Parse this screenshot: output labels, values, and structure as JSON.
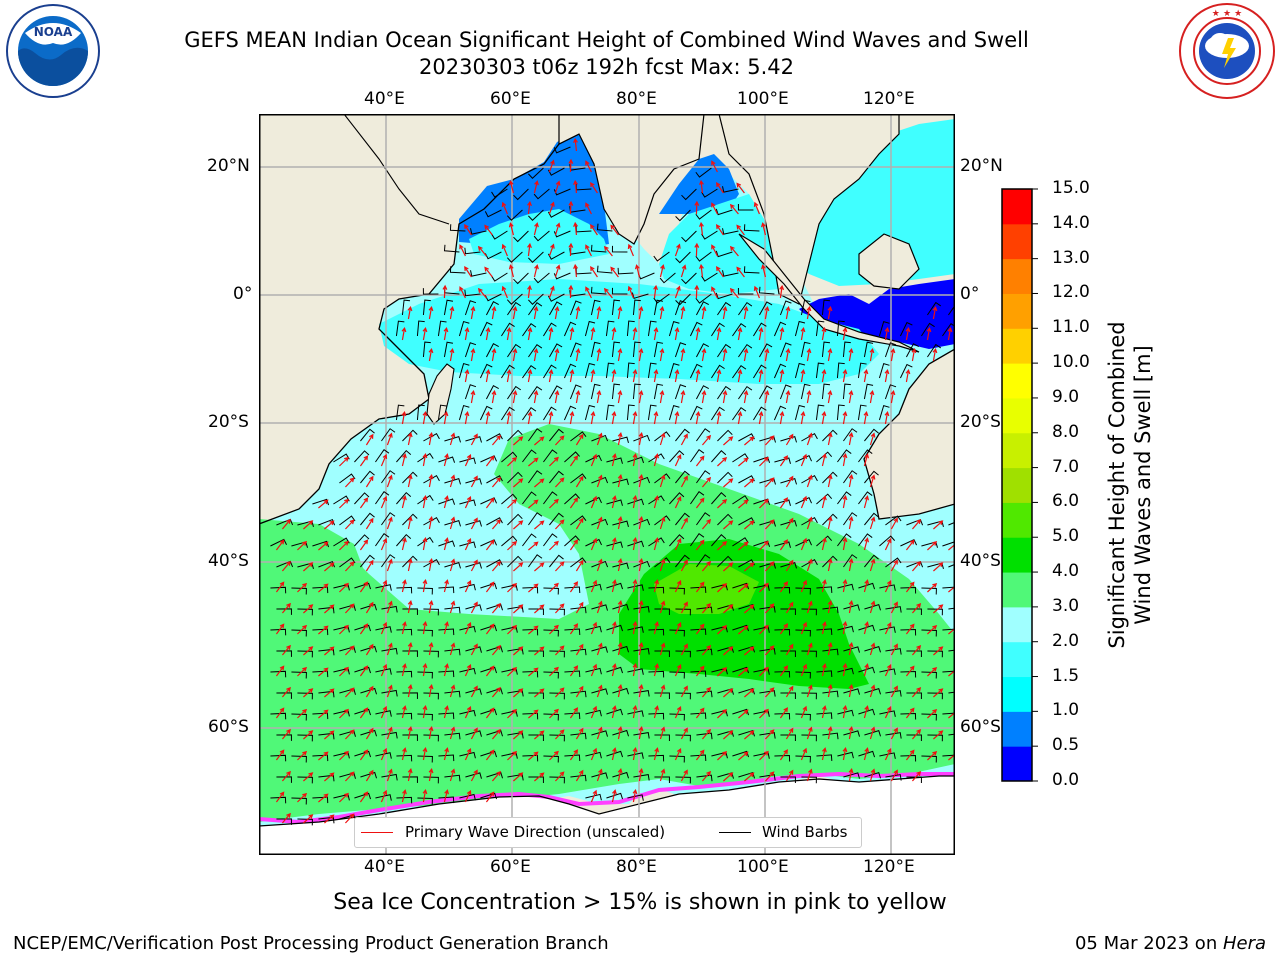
{
  "header": {
    "title_line1": "GEFS MEAN Indian Ocean Significant Height of Combined Wind Waves and Swell",
    "title_line2": "20230303 t06z 192h fcst   Max: 5.42"
  },
  "logos": {
    "left": {
      "icon": "noaa-logo",
      "text": "NOAA",
      "ring_text": "NATIONAL OCEANIC AND ATMOSPHERIC ADMINISTRATION · U.S. DEPARTMENT OF COMMERCE"
    },
    "right": {
      "icon": "nws-logo",
      "ring_text": "NATIONAL WEATHER SERVICE"
    }
  },
  "map": {
    "top_lon_labels": [
      "40°E",
      "60°E",
      "80°E",
      "100°E",
      "120°E"
    ],
    "bottom_lon_labels": [
      "40°E",
      "60°E",
      "80°E",
      "100°E",
      "120°E"
    ],
    "left_lat_labels": [
      "20°N",
      "0°",
      "20°S",
      "40°S",
      "60°S"
    ],
    "right_lat_labels": [
      "20°N",
      "0°",
      "20°S",
      "40°S",
      "60°S"
    ],
    "colors": {
      "land": "#efecdc",
      "coast": "#000000",
      "grid": "#b0b0b0",
      "wave_arrow": "#ee1111",
      "wind_barb": "#000000"
    }
  },
  "legend": {
    "wave_label": "Primary Wave Direction (unscaled)",
    "wind_label": "Wind Barbs",
    "wave_color": "#ee1111",
    "wind_color": "#000000"
  },
  "colorbar": {
    "title_line1": "Significant Height of Combined",
    "title_line2": "Wind Waves and Swell [m]",
    "tick_labels": [
      "0.0",
      "0.5",
      "1.0",
      "1.5",
      "2.0",
      "3.0",
      "4.0",
      "5.0",
      "6.0",
      "7.0",
      "8.0",
      "9.0",
      "10.0",
      "11.0",
      "12.0",
      "13.0",
      "14.0",
      "15.0"
    ],
    "colors": [
      "#0000ff",
      "#0080ff",
      "#00ffff",
      "#40ffff",
      "#a0ffff",
      "#50f878",
      "#00e000",
      "#50e800",
      "#a0e000",
      "#c8f000",
      "#e8ff00",
      "#ffff00",
      "#ffd000",
      "#ffa000",
      "#ff8000",
      "#ff4000",
      "#ff0000"
    ]
  },
  "footer": {
    "subcaption": "Sea Ice Concentration > 15% is shown in pink to yellow",
    "left": "NCEP/EMC/Verification Post Processing Product Generation Branch",
    "right_date": "05 Mar 2023 on ",
    "right_host": "Hera"
  }
}
